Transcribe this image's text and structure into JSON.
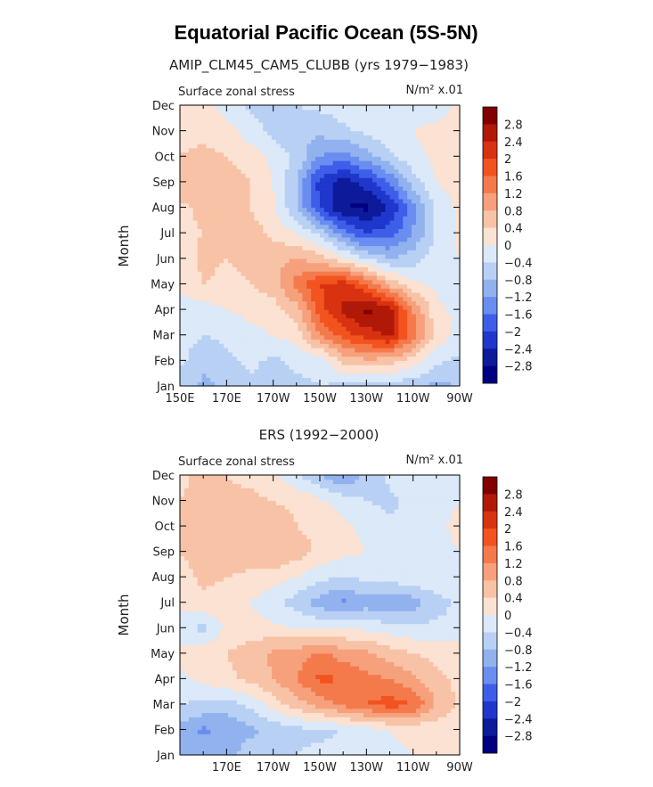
{
  "figure": {
    "title": "Equatorial Pacific Ocean (5S-5N)"
  },
  "colorbar_levels": [
    "2.8",
    "2.4",
    "2",
    "1.6",
    "1.2",
    "0.8",
    "0.4",
    "0",
    "−0.4",
    "−0.8",
    "−1.2",
    "−1.6",
    "−2",
    "−2.4",
    "−2.8"
  ],
  "colors": {
    "scale": [
      "#800000",
      "#b01808",
      "#d93210",
      "#f2531f",
      "#f47a4c",
      "#f6a07c",
      "#f8c2a6",
      "#fbe2d2",
      "#dbe9f9",
      "#b8d0f4",
      "#92b2ef",
      "#6a8df0",
      "#3e5ee9",
      "#1f37cc",
      "#0d1a99",
      "#000080"
    ]
  },
  "chart_data": [
    {
      "type": "heatmap",
      "subtitle": "AMIP_CLM45_CAM5_CLUBB (yrs 1979−1983)",
      "left_label": "Surface zonal stress",
      "units": "N/m² x.01",
      "ylabel": "Month",
      "xlabel": "",
      "x_tick_labels": [
        "150E",
        "170E",
        "170W",
        "150W",
        "130W",
        "110W",
        "90W"
      ],
      "y_tick_labels": [
        "Jan",
        "Feb",
        "Mar",
        "Apr",
        "May",
        "Jun",
        "Jul",
        "Aug",
        "Sep",
        "Oct",
        "Nov",
        "Dec"
      ],
      "x_longitudes": [
        150,
        160,
        170,
        180,
        190,
        200,
        210,
        220,
        230,
        240,
        250,
        260,
        270
      ],
      "months": [
        "Jan",
        "Feb",
        "Mar",
        "Apr",
        "May",
        "Jun",
        "Jul",
        "Aug",
        "Sep",
        "Oct",
        "Nov",
        "Dec"
      ],
      "values": [
        [
          -0.6,
          -0.9,
          -0.7,
          -0.5,
          -0.6,
          -0.5,
          -0.4,
          -0.5,
          -0.5,
          -0.6,
          -0.7,
          -0.9,
          -0.8
        ],
        [
          -0.3,
          -0.7,
          -0.5,
          -0.3,
          -0.5,
          -0.3,
          -0.3,
          0.5,
          0.7,
          0.6,
          0.2,
          -0.3,
          -0.5
        ],
        [
          -0.2,
          -0.4,
          -0.3,
          -0.1,
          0.0,
          0.2,
          1.2,
          1.8,
          2.2,
          2.5,
          1.4,
          0.3,
          -0.2
        ],
        [
          -0.2,
          -0.2,
          0.0,
          0.1,
          0.2,
          0.6,
          1.8,
          2.5,
          2.9,
          2.6,
          1.2,
          0.1,
          -0.1
        ],
        [
          0.1,
          0.4,
          0.3,
          0.4,
          0.6,
          1.4,
          2.0,
          2.2,
          1.6,
          0.7,
          0.1,
          -0.1,
          -0.2
        ],
        [
          0.2,
          0.5,
          0.4,
          0.5,
          0.7,
          0.8,
          0.6,
          0.1,
          -0.4,
          -0.8,
          -0.6,
          -0.2,
          0.0
        ],
        [
          0.3,
          0.4,
          0.5,
          0.6,
          0.3,
          0.0,
          -0.5,
          -1.4,
          -2.0,
          -1.8,
          -1.2,
          -0.3,
          0.1
        ],
        [
          0.3,
          0.5,
          0.5,
          0.4,
          0.1,
          -0.8,
          -2.0,
          -2.8,
          -2.9,
          -2.4,
          -1.3,
          -0.3,
          0.1
        ],
        [
          0.7,
          0.8,
          0.6,
          0.4,
          0.0,
          -0.8,
          -2.2,
          -2.6,
          -2.2,
          -1.6,
          -0.6,
          0.0,
          0.2
        ],
        [
          0.4,
          0.5,
          0.4,
          0.2,
          -0.1,
          -0.5,
          -1.2,
          -1.4,
          -1.0,
          -0.5,
          -0.1,
          0.1,
          0.3
        ],
        [
          0.3,
          0.3,
          0.2,
          -0.2,
          -0.5,
          -0.8,
          -0.7,
          -0.5,
          -0.3,
          -0.1,
          0.0,
          0.1,
          0.2
        ],
        [
          0.2,
          0.1,
          -0.2,
          -0.5,
          -0.5,
          -0.4,
          -0.3,
          -0.2,
          -0.1,
          0.0,
          -0.1,
          -0.2,
          0.1
        ]
      ]
    },
    {
      "type": "heatmap",
      "subtitle": "ERS (1992−2000)",
      "left_label": "Surface zonal stress",
      "units": "N/m² x.01",
      "ylabel": "Month",
      "xlabel": "",
      "x_tick_labels": [
        "",
        "170E",
        "170W",
        "150W",
        "130W",
        "110W",
        "90W"
      ],
      "y_tick_labels": [
        "Jan",
        "Feb",
        "Mar",
        "Apr",
        "May",
        "Jun",
        "Jul",
        "Aug",
        "Sep",
        "Oct",
        "Nov",
        "Dec"
      ],
      "x_longitudes": [
        150,
        160,
        170,
        180,
        190,
        200,
        210,
        220,
        230,
        240,
        250,
        260,
        270
      ],
      "months": [
        "Jan",
        "Feb",
        "Mar",
        "Apr",
        "May",
        "Jun",
        "Jul",
        "Aug",
        "Sep",
        "Oct",
        "Nov",
        "Dec"
      ],
      "values": [
        [
          -1.0,
          -0.8,
          -0.9,
          -0.6,
          -0.5,
          -0.4,
          -0.3,
          -0.2,
          -0.2,
          -0.1,
          0.0,
          0.0,
          0.1
        ],
        [
          -0.9,
          -1.3,
          -1.1,
          -0.9,
          -0.7,
          -0.5,
          -0.5,
          -0.4,
          -0.2,
          0.0,
          0.1,
          0.1,
          0.1
        ],
        [
          -0.4,
          -0.5,
          -0.6,
          -0.3,
          0.2,
          0.6,
          1.0,
          1.3,
          1.6,
          1.8,
          1.6,
          0.8,
          0.3
        ],
        [
          -0.1,
          0.1,
          0.3,
          0.5,
          0.8,
          1.2,
          1.7,
          1.6,
          1.3,
          1.2,
          0.9,
          0.5,
          0.3
        ],
        [
          0.1,
          0.3,
          0.4,
          0.6,
          0.9,
          1.0,
          1.3,
          1.0,
          0.9,
          0.6,
          0.4,
          0.3,
          0.2
        ],
        [
          -0.3,
          -0.5,
          0.1,
          0.2,
          0.1,
          0.0,
          0.0,
          0.0,
          -0.1,
          -0.2,
          -0.3,
          -0.3,
          -0.2
        ],
        [
          0.1,
          0.3,
          0.2,
          0.0,
          -0.3,
          -0.6,
          -1.0,
          -1.3,
          -1.0,
          -1.2,
          -1.0,
          -0.6,
          -0.3
        ],
        [
          0.2,
          0.5,
          0.4,
          0.3,
          0.2,
          0.0,
          -0.3,
          -0.4,
          -0.3,
          -0.2,
          -0.1,
          0.0,
          0.0
        ],
        [
          0.4,
          0.6,
          0.7,
          0.6,
          0.8,
          0.6,
          0.3,
          0.1,
          0.0,
          -0.1,
          -0.2,
          -0.1,
          0.0
        ],
        [
          0.5,
          0.7,
          0.6,
          0.6,
          0.7,
          0.4,
          0.3,
          0.1,
          -0.1,
          -0.3,
          -0.2,
          -0.1,
          0.1
        ],
        [
          0.4,
          0.6,
          0.5,
          0.5,
          0.4,
          0.3,
          0.1,
          -0.2,
          -0.4,
          -0.5,
          -0.3,
          -0.1,
          0.0
        ],
        [
          0.3,
          0.5,
          0.4,
          0.3,
          0.1,
          -0.3,
          -0.8,
          -1.2,
          -0.7,
          -0.3,
          -0.1,
          0.0,
          0.0
        ]
      ]
    }
  ]
}
